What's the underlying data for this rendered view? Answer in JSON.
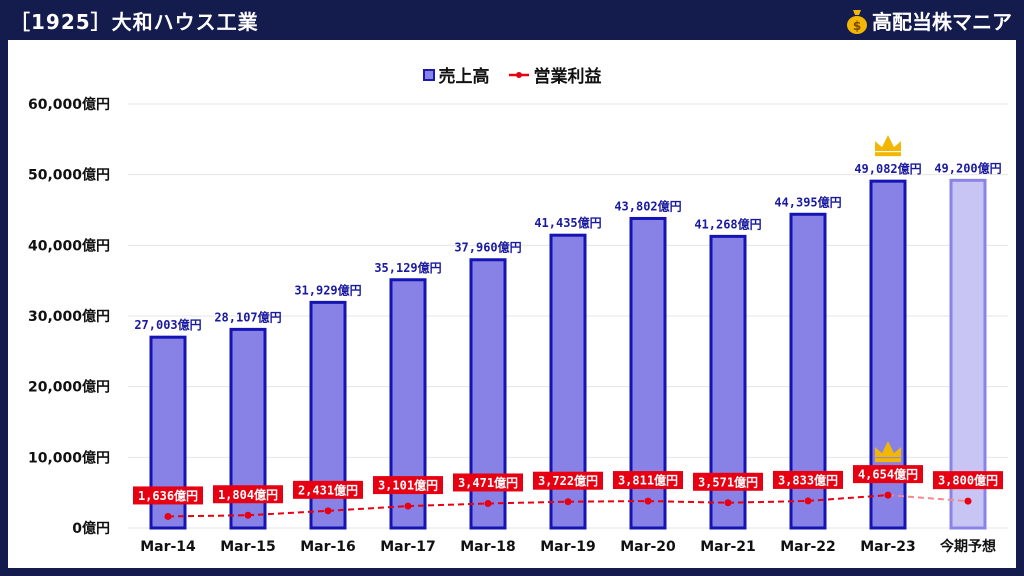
{
  "header": {
    "title": "［1925］大和ハウス工業",
    "brand": "高配当株マニア",
    "brand_icon": "money-bag-icon"
  },
  "colors": {
    "bar_fill": "#8882e6",
    "bar_stroke": "#1414b4",
    "forecast_fill": "#c8c5f4",
    "forecast_stroke": "#8a84e8",
    "line": "#e60012",
    "label_box": "#e60012",
    "crown": "#f2b705",
    "sales_label": "#1a1aa0"
  },
  "chart_data": {
    "type": "bar",
    "legend": [
      "売上高",
      "営業利益"
    ],
    "categories": [
      "Mar-14",
      "Mar-15",
      "Mar-16",
      "Mar-17",
      "Mar-18",
      "Mar-19",
      "Mar-20",
      "Mar-21",
      "Mar-22",
      "Mar-23",
      "今期予想"
    ],
    "series": [
      {
        "name": "売上高",
        "type": "bar",
        "values": [
          27003,
          28107,
          31929,
          35129,
          37960,
          41435,
          43802,
          41268,
          44395,
          49082,
          49200
        ],
        "labels": [
          "27,003億円",
          "28,107億円",
          "31,929億円",
          "35,129億円",
          "37,960億円",
          "41,435億円",
          "43,802億円",
          "41,268億円",
          "44,395億円",
          "49,082億円",
          "49,200億円"
        ]
      },
      {
        "name": "営業利益",
        "type": "line",
        "values": [
          1636,
          1804,
          2431,
          3101,
          3471,
          3722,
          3811,
          3571,
          3833,
          4654,
          3800
        ],
        "labels": [
          "1,636億円",
          "1,804億円",
          "2,431億円",
          "3,101億円",
          "3,471億円",
          "3,722億円",
          "3,811億円",
          "3,571億円",
          "3,833億円",
          "4,654億円",
          "3,800億円"
        ]
      }
    ],
    "forecast_index": 10,
    "crown_index": 9,
    "ylim": [
      0,
      60000
    ],
    "yticks": [
      0,
      10000,
      20000,
      30000,
      40000,
      50000,
      60000
    ],
    "ytick_labels": [
      "0億円",
      "10,000億円",
      "20,000億円",
      "30,000億円",
      "40,000億円",
      "50,000億円",
      "60,000億円"
    ],
    "grid": true,
    "legend_position": "top-center"
  }
}
